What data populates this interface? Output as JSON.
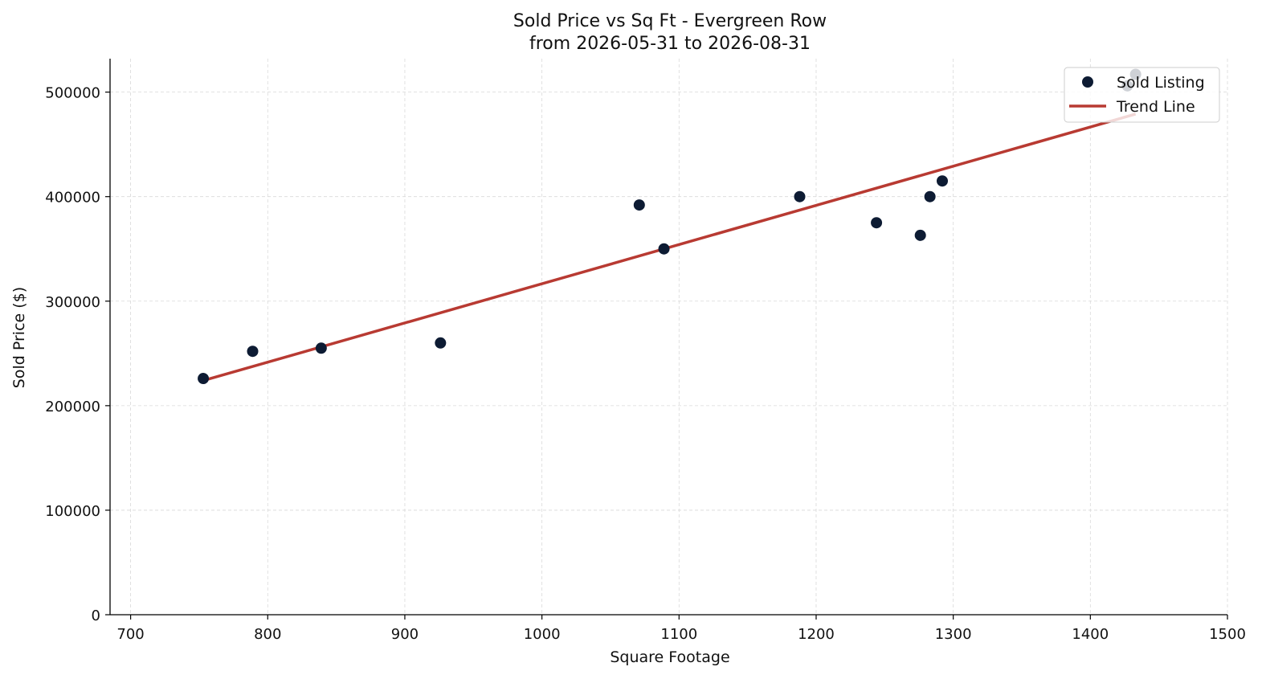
{
  "chart_data": {
    "type": "scatter",
    "title": "Sold Price vs Sq Ft - Evergreen Row",
    "subtitle": "from 2026-05-31 to 2026-08-31",
    "xlabel": "Square Footage",
    "ylabel": "Sold Price ($)",
    "xlim": [
      685,
      1500
    ],
    "ylim": [
      0,
      532000
    ],
    "xticks": [
      700,
      800,
      900,
      1000,
      1100,
      1200,
      1300,
      1400,
      1500
    ],
    "yticks": [
      0,
      100000,
      200000,
      300000,
      400000,
      500000
    ],
    "grid": true,
    "legend_position": "top-right",
    "series": [
      {
        "name": "Sold Listing",
        "kind": "scatter",
        "color": "#0d1b33",
        "points": [
          {
            "x": 753,
            "y": 226000
          },
          {
            "x": 789,
            "y": 252000
          },
          {
            "x": 839,
            "y": 255000
          },
          {
            "x": 926,
            "y": 260000
          },
          {
            "x": 1071,
            "y": 392000
          },
          {
            "x": 1089,
            "y": 350000
          },
          {
            "x": 1188,
            "y": 400000
          },
          {
            "x": 1244,
            "y": 375000
          },
          {
            "x": 1276,
            "y": 363000
          },
          {
            "x": 1283,
            "y": 400000
          },
          {
            "x": 1292,
            "y": 415000
          },
          {
            "x": 1427,
            "y": 506000
          },
          {
            "x": 1433,
            "y": 517000
          }
        ]
      },
      {
        "name": "Trend Line",
        "kind": "line",
        "color": "#b83a32",
        "points": [
          {
            "x": 753,
            "y": 224000
          },
          {
            "x": 1433,
            "y": 479000
          }
        ]
      }
    ]
  }
}
